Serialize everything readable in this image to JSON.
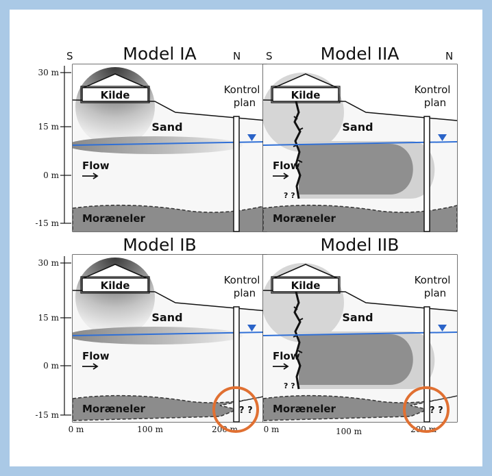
{
  "direction": {
    "south": "S",
    "north": "N"
  },
  "panels": [
    {
      "id": "ia",
      "title": "Model IA",
      "variant": "A",
      "unknown": false
    },
    {
      "id": "iia",
      "title": "Model IIA",
      "variant": "B",
      "unknown": false
    },
    {
      "id": "ib",
      "title": "Model IB",
      "variant": "A",
      "unknown": true
    },
    {
      "id": "iib",
      "title": "Model IIB",
      "variant": "B",
      "unknown": true
    }
  ],
  "labels": {
    "kilde": "Kilde",
    "kontrol_line1": "Kontrol",
    "kontrol_line2": "plan",
    "sand": "Sand",
    "flow": "Flow",
    "moraeneler": "Moræneler",
    "source_unknown": "? ?",
    "clay_unknown": "? ?"
  },
  "y_ticks": [
    "30 m",
    "15 m",
    "0 m",
    "-15 m"
  ],
  "x_ticks": [
    "0 m",
    "100 m",
    "200 m",
    "0 m",
    "100 m",
    "200 m"
  ],
  "colors": {
    "background": "#aac9e6",
    "water_table": "#2f6fd6",
    "water_marker": "#2a63c8",
    "clay": "#8c8c8c",
    "highlight_circle": "#e07032"
  }
}
